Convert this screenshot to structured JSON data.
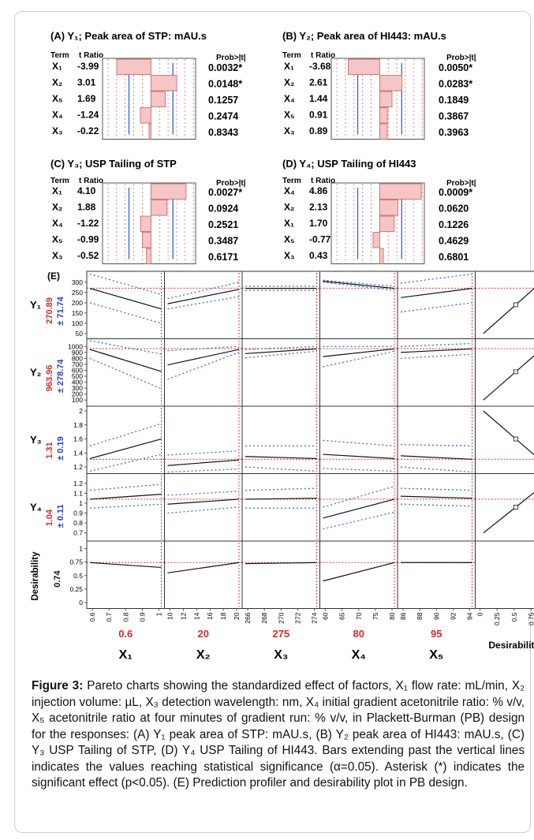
{
  "pareto_header": {
    "term": "Term",
    "tratio": "t Ratio",
    "prob": "Prob>|t|"
  },
  "profiler_panel_label": "(E)",
  "chart_data": [
    {
      "type": "bar",
      "panel": "(A)",
      "title": "(A) Y₁; Peak area of STP: mAU.s",
      "terms": [
        "X₁",
        "X₂",
        "X₅",
        "X₄",
        "X₃"
      ],
      "t_ratio": [
        -3.99,
        3.01,
        1.69,
        -1.24,
        -0.22
      ],
      "t_ratio_text": [
        "-3.99",
        "3.01",
        "1.69",
        "-1.24",
        "-0.22"
      ],
      "prob": [
        "0.0032*",
        "0.0148*",
        "0.1257",
        "0.2474",
        "0.8343"
      ],
      "significant": [
        true,
        true,
        false,
        false,
        false
      ]
    },
    {
      "type": "bar",
      "panel": "(B)",
      "title": "(B) Y₂; Peak area of HI443: mAU.s",
      "terms": [
        "X₁",
        "X₂",
        "X₄",
        "X₅",
        "X₃"
      ],
      "t_ratio": [
        -3.68,
        2.61,
        1.44,
        0.91,
        0.89
      ],
      "t_ratio_text": [
        "-3.68",
        "2.61",
        "1.44",
        "0.91",
        "0.89"
      ],
      "prob": [
        "0.0050*",
        "0.0283*",
        "0.1849",
        "0.3867",
        "0.3963"
      ],
      "significant": [
        true,
        true,
        false,
        false,
        false
      ]
    },
    {
      "type": "bar",
      "panel": "(C)",
      "title": "(C) Y₃; USP Tailing of STP",
      "terms": [
        "X₁",
        "X₂",
        "X₄",
        "X₅",
        "X₃"
      ],
      "t_ratio": [
        4.1,
        1.88,
        -1.22,
        -0.99,
        -0.52
      ],
      "t_ratio_text": [
        "4.10",
        "1.88",
        "-1.22",
        "-0.99",
        "-0.52"
      ],
      "prob": [
        "0.0027*",
        "0.0924",
        "0.2521",
        "0.3487",
        "0.6171"
      ],
      "significant": [
        true,
        false,
        false,
        false,
        false
      ]
    },
    {
      "type": "bar",
      "panel": "(D)",
      "title": "(D) Y₄; USP Tailing of HI443",
      "terms": [
        "X₄",
        "X₂",
        "X₁",
        "X₅",
        "X₃"
      ],
      "t_ratio": [
        4.86,
        2.13,
        1.7,
        -0.77,
        0.43
      ],
      "t_ratio_text": [
        "4.86",
        "2.13",
        "1.70",
        "-0.77",
        "0.43"
      ],
      "prob": [
        "0.0009*",
        "0.0620",
        "0.1226",
        "0.4629",
        "0.6801"
      ],
      "significant": [
        true,
        false,
        false,
        false,
        false
      ]
    },
    {
      "type": "line",
      "panel": "(E)",
      "factors": [
        {
          "name": "X₁",
          "current": "0.6",
          "ticks": [
            "0.6",
            "0.7",
            "0.8",
            "0.9",
            "1"
          ],
          "range": [
            0.6,
            1.0
          ],
          "current_value": 0.6
        },
        {
          "name": "X₂",
          "current": "20",
          "ticks": [
            "10",
            "12",
            "14",
            "16",
            "18",
            "20"
          ],
          "range": [
            10,
            20
          ],
          "current_value": 20
        },
        {
          "name": "X₃",
          "current": "275",
          "ticks": [
            "266",
            "268",
            "270",
            "272",
            "274"
          ],
          "range": [
            265,
            275
          ],
          "current_value": 275
        },
        {
          "name": "X₄",
          "current": "80",
          "ticks": [
            "60",
            "65",
            "70",
            "75",
            "80"
          ],
          "range": [
            60,
            80
          ],
          "current_value": 80
        },
        {
          "name": "X₅",
          "current": "95",
          "ticks": [
            "86",
            "88",
            "90",
            "92",
            "94"
          ],
          "range": [
            85,
            95
          ],
          "current_value": 95
        }
      ],
      "desirability_label": "Desirability",
      "desirability_ticks": [
        "0",
        "0.25",
        "0.5",
        "0.75",
        "1"
      ],
      "responses": [
        {
          "name": "Y₁",
          "value": "270.89",
          "ci": "± 71.74",
          "ticks": [
            "300",
            "250",
            "200",
            "150",
            "100",
            "50"
          ],
          "ylim": [
            40,
            330
          ],
          "traces": [
            [
              270,
              170
            ],
            [
              195,
              265
            ],
            [
              270,
              270
            ],
            [
              305,
              270
            ],
            [
              225,
              270
            ]
          ],
          "ci_traces": [
            [
              340,
              240
            ],
            [
              220,
              300
            ],
            [
              280,
              280
            ],
            [
              310,
              280
            ],
            [
              295,
              340
            ]
          ],
          "desirability": [
            [
              0.05,
              50
            ],
            [
              1,
              330
            ]
          ]
        },
        {
          "name": "Y₂",
          "value": "963.96",
          "ci": "± 278.74",
          "ticks": [
            "1000",
            "900",
            "800",
            "700",
            "600",
            "500",
            "400",
            "300",
            "200",
            "100"
          ],
          "ylim": [
            50,
            1050
          ],
          "traces": [
            [
              950,
              580
            ],
            [
              690,
              950
            ],
            [
              880,
              960
            ],
            [
              830,
              960
            ],
            [
              900,
              960
            ]
          ],
          "ci_traces": [
            [
              1100,
              870
            ],
            [
              930,
              1000
            ],
            [
              950,
              1000
            ],
            [
              1000,
              1000
            ],
            [
              1000,
              1050
            ]
          ],
          "desirability": [
            [
              0.05,
              100
            ],
            [
              1,
              1050
            ]
          ]
        },
        {
          "name": "Y₃",
          "value": "1.31",
          "ci": "± 0.19",
          "ticks": [
            "2",
            "1.8",
            "1.6",
            "1.4",
            "1.2"
          ],
          "ylim": [
            1.15,
            2.0
          ],
          "traces": [
            [
              1.32,
              1.6
            ],
            [
              1.22,
              1.3
            ],
            [
              1.35,
              1.32
            ],
            [
              1.38,
              1.32
            ],
            [
              1.36,
              1.31
            ]
          ],
          "ci_traces": [
            [
              1.5,
              1.82
            ],
            [
              1.37,
              1.43
            ],
            [
              1.5,
              1.5
            ],
            [
              1.58,
              1.5
            ],
            [
              1.52,
              1.5
            ]
          ],
          "desirability": [
            [
              0.05,
              2.0
            ],
            [
              1,
              1.2
            ]
          ]
        },
        {
          "name": "Y₄",
          "value": "1.04",
          "ci": "± 0.11",
          "ticks": [
            "1.2",
            "1.1",
            "1",
            "0.9",
            "0.8",
            "0.7"
          ],
          "ylim": [
            0.65,
            1.25
          ],
          "traces": [
            [
              1.04,
              1.09
            ],
            [
              0.99,
              1.04
            ],
            [
              1.04,
              1.05
            ],
            [
              0.85,
              1.04
            ],
            [
              1.07,
              1.05
            ]
          ],
          "ci_traces": [
            [
              1.13,
              1.19
            ],
            [
              1.08,
              1.12
            ],
            [
              1.13,
              1.15
            ],
            [
              0.96,
              1.17
            ],
            [
              1.15,
              1.13
            ]
          ],
          "desirability": [
            [
              0.05,
              0.7
            ],
            [
              1,
              1.22
            ]
          ]
        },
        {
          "name": "Desirability",
          "value": "0.74",
          "ci": "",
          "ticks": [
            "1",
            "0.75",
            "0.5",
            "0.25",
            "0"
          ],
          "ylim": [
            -0.05,
            1.05
          ],
          "traces": [
            [
              0.74,
              0.65
            ],
            [
              0.55,
              0.74
            ],
            [
              0.72,
              0.74
            ],
            [
              0.4,
              0.74
            ],
            [
              0.74,
              0.74
            ]
          ],
          "ci_traces": [],
          "desirability": []
        }
      ]
    }
  ],
  "caption": {
    "label": "Figure 3:",
    "text": " Pareto charts showing the standardized effect of factors, X₁ flow rate: mL/min, X₂ injection volume: µL, X₃ detection wavelength: nm, X₄ initial gradient acetonitrile ratio: % v/v, X₅ acetonitrile ratio at four minutes of gradient run: % v/v, in Plackett-Burman (PB) design for the responses: (A) Y₁ peak area of STP: mAU.s, (B) Y₂ peak area of HI443: mAU.s, (C) Y₃ USP Tailing of STP, (D) Y₄ USP Tailing of HI443. Bars extending past the vertical lines indicates the values reaching statistical significance (α=0.05). Asterisk (*) indicates the significant effect (p<0.05). (E) Prediction profiler and desirability plot in PB design."
  },
  "colors": {
    "bar_fill": "#f6c5c5",
    "bar_stroke": "#c26060",
    "blue_line": "#3a6fd8",
    "red_dash": "#d83a3a",
    "value_red": "#d42c2c",
    "ci_blue": "#2a3fbf"
  }
}
